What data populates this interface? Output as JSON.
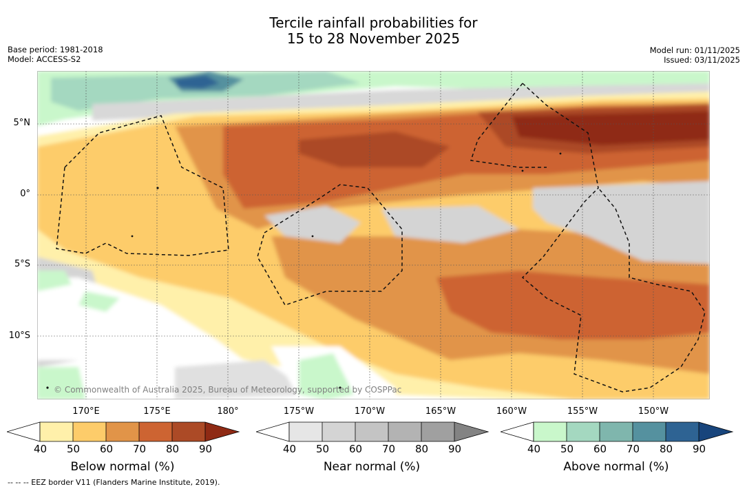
{
  "title": {
    "line1": "Tercile rainfall probabilities for",
    "line2": "15 to 28 November 2025"
  },
  "meta": {
    "base_period": "Base period: 1981-2018",
    "model": "Model: ACCESS-S2",
    "model_run": "Model run: 01/11/2025",
    "issued": "Issued: 03/11/2025"
  },
  "axes": {
    "lat_labels": [
      "5°N",
      "0°",
      "5°S",
      "10°S"
    ],
    "lon_labels": [
      "170°E",
      "175°E",
      "180°",
      "175°W",
      "170°W",
      "165°W",
      "160°W",
      "155°W",
      "150°W"
    ]
  },
  "copyright": "© Commonwealth of Australia 2025, Bureau of Meteorology, supported by COSPPac",
  "colorbars": {
    "ticks": [
      "40",
      "50",
      "60",
      "70",
      "80",
      "90"
    ],
    "below": {
      "title": "Below normal (%)",
      "colors": [
        "#fff0aa",
        "#fdcc6a",
        "#e19448",
        "#cd6432",
        "#ac4a26",
        "#8f2a14"
      ]
    },
    "near": {
      "title": "Near normal (%)",
      "colors": [
        "#e6e6e6",
        "#d4d4d4",
        "#c4c4c4",
        "#b3b3b3",
        "#a0a0a0",
        "#838383"
      ]
    },
    "above": {
      "title": "Above normal (%)",
      "colors": [
        "#c9f7cb",
        "#a4d8c0",
        "#7fb6ad",
        "#55919f",
        "#2e6393",
        "#18457c"
      ]
    }
  },
  "footnote": "-- -- -- EEZ border V11 (Flanders Marine Institute, 2019)."
}
